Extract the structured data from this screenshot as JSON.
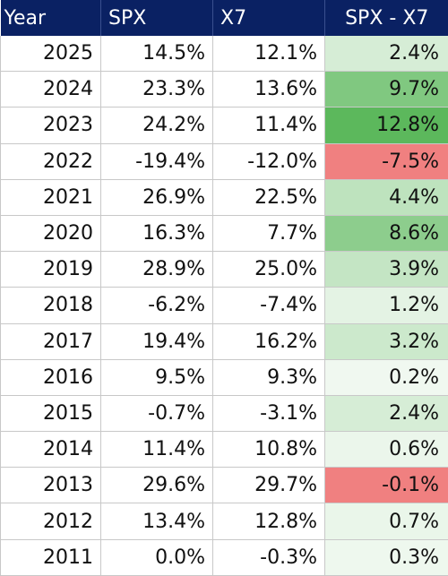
{
  "chart_data": {
    "type": "table",
    "columns": [
      "Year",
      "SPX",
      "X7",
      "SPX - X7"
    ],
    "rows": [
      {
        "year": "2025",
        "spx": "14.5%",
        "x7": "12.1%",
        "diff": "2.4%",
        "diff_value": 2.4
      },
      {
        "year": "2024",
        "spx": "23.3%",
        "x7": "13.6%",
        "diff": "9.7%",
        "diff_value": 9.7
      },
      {
        "year": "2023",
        "spx": "24.2%",
        "x7": "11.4%",
        "diff": "12.8%",
        "diff_value": 12.8
      },
      {
        "year": "2022",
        "spx": "-19.4%",
        "x7": "-12.0%",
        "diff": "-7.5%",
        "diff_value": -7.5
      },
      {
        "year": "2021",
        "spx": "26.9%",
        "x7": "22.5%",
        "diff": "4.4%",
        "diff_value": 4.4
      },
      {
        "year": "2020",
        "spx": "16.3%",
        "x7": "7.7%",
        "diff": "8.6%",
        "diff_value": 8.6
      },
      {
        "year": "2019",
        "spx": "28.9%",
        "x7": "25.0%",
        "diff": "3.9%",
        "diff_value": 3.9
      },
      {
        "year": "2018",
        "spx": "-6.2%",
        "x7": "-7.4%",
        "diff": "1.2%",
        "diff_value": 1.2
      },
      {
        "year": "2017",
        "spx": "19.4%",
        "x7": "16.2%",
        "diff": "3.2%",
        "diff_value": 3.2
      },
      {
        "year": "2016",
        "spx": "9.5%",
        "x7": "9.3%",
        "diff": "0.2%",
        "diff_value": 0.2
      },
      {
        "year": "2015",
        "spx": "-0.7%",
        "x7": "-3.1%",
        "diff": "2.4%",
        "diff_value": 2.4
      },
      {
        "year": "2014",
        "spx": "11.4%",
        "x7": "10.8%",
        "diff": "0.6%",
        "diff_value": 0.6
      },
      {
        "year": "2013",
        "spx": "29.6%",
        "x7": "29.7%",
        "diff": "-0.1%",
        "diff_value": -0.1
      },
      {
        "year": "2012",
        "spx": "13.4%",
        "x7": "12.8%",
        "diff": "0.7%",
        "diff_value": 0.7
      },
      {
        "year": "2011",
        "spx": "0.0%",
        "x7": "-0.3%",
        "diff": "0.3%",
        "diff_value": 0.3
      }
    ],
    "colors": {
      "header_bg": "#0a2163",
      "header_text": "#ffffff",
      "positive_max": "#5cb85c",
      "positive_min": "#ffffff",
      "negative": "#f08080"
    }
  }
}
